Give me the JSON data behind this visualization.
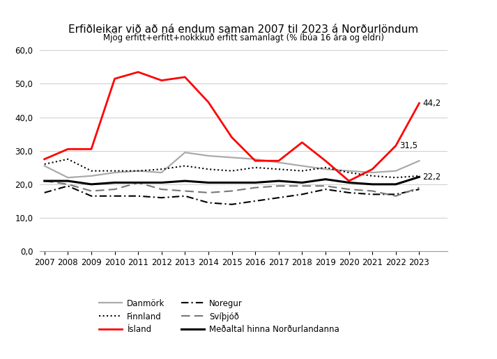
{
  "title": "Erfiðleikar við að ná endum saman 2007 til 2023 á Norðurlöndum",
  "subtitle": "Mjög erfitt+erfitt+nokkkuð erfitt samanlagt (% íbúa 16 ára og eldri)",
  "years": [
    2007,
    2008,
    2009,
    2010,
    2011,
    2012,
    2013,
    2014,
    2015,
    2016,
    2017,
    2018,
    2019,
    2020,
    2021,
    2022,
    2023
  ],
  "danmork": [
    25.5,
    22.0,
    22.5,
    23.5,
    24.0,
    23.5,
    29.5,
    28.5,
    28.0,
    27.5,
    26.5,
    25.5,
    24.5,
    24.0,
    23.5,
    24.0,
    27.0
  ],
  "finnland": [
    26.0,
    27.5,
    24.0,
    24.0,
    24.0,
    24.5,
    25.5,
    24.5,
    24.0,
    25.0,
    24.5,
    24.0,
    25.0,
    23.5,
    22.5,
    22.0,
    22.5
  ],
  "island": [
    27.5,
    30.5,
    30.5,
    51.5,
    53.5,
    51.0,
    52.0,
    44.5,
    34.0,
    27.0,
    27.0,
    32.5,
    27.0,
    21.0,
    24.5,
    31.5,
    44.2
  ],
  "noregur": [
    17.5,
    19.5,
    16.5,
    16.5,
    16.5,
    16.0,
    16.5,
    14.5,
    14.0,
    15.0,
    16.0,
    17.0,
    18.5,
    17.5,
    17.0,
    17.0,
    18.5
  ],
  "svipjod": [
    21.0,
    20.0,
    18.0,
    18.5,
    20.5,
    18.5,
    18.0,
    17.5,
    18.0,
    19.0,
    19.5,
    19.5,
    19.5,
    18.5,
    18.0,
    16.5,
    19.0
  ],
  "medaltal": [
    21.0,
    21.0,
    20.0,
    20.5,
    20.5,
    20.5,
    21.0,
    20.5,
    20.5,
    20.5,
    21.0,
    20.5,
    21.5,
    20.5,
    20.0,
    20.0,
    22.2
  ],
  "ylim": [
    0,
    60
  ],
  "yticks": [
    0.0,
    10.0,
    20.0,
    30.0,
    40.0,
    50.0,
    60.0
  ],
  "background_color": "#ffffff",
  "ann_island_2023": "44,2",
  "ann_island_2022": "31,5",
  "ann_medaltal_2023": "22,2"
}
